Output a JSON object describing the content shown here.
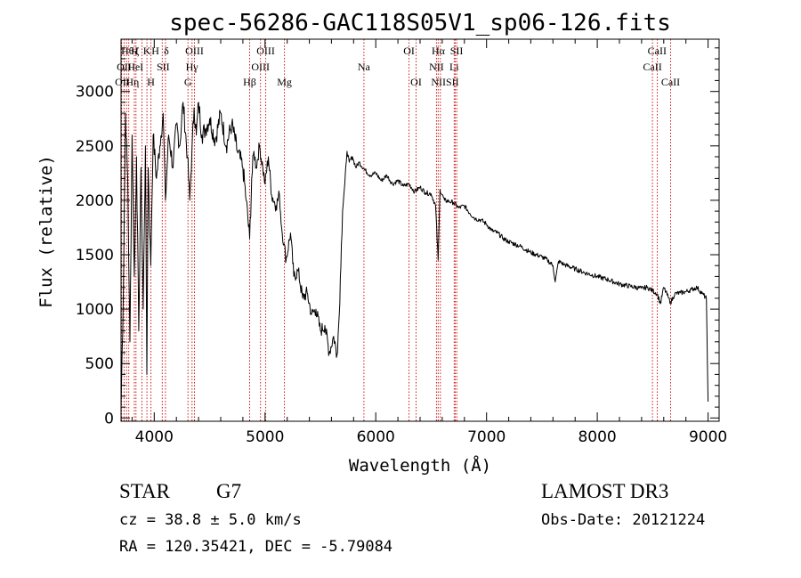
{
  "chart_data": {
    "type": "line",
    "title": "spec-56286-GAC118S05V1_sp06-126.fits",
    "xlabel": "Wavelength (Å)",
    "ylabel": "Flux (relative)",
    "xlim": [
      3700,
      9100
    ],
    "ylim": [
      -30,
      3480
    ],
    "x_ticks": [
      4000,
      5000,
      6000,
      7000,
      8000,
      9000
    ],
    "x_tick_labels": [
      "4000",
      "5000",
      "6000",
      "7000",
      "8000",
      "9000"
    ],
    "y_ticks": [
      0,
      500,
      1000,
      1500,
      2000,
      2500,
      3000
    ],
    "y_tick_labels": [
      "0",
      "500",
      "1000",
      "1500",
      "2000",
      "2500",
      "3000"
    ],
    "grid": false,
    "series": [
      {
        "name": "flux",
        "x": [
          3700,
          3720,
          3740,
          3760,
          3780,
          3800,
          3820,
          3840,
          3860,
          3880,
          3900,
          3920,
          3933,
          3945,
          3968,
          3990,
          4020,
          4050,
          4080,
          4101,
          4130,
          4170,
          4200,
          4230,
          4260,
          4300,
          4320,
          4340,
          4360,
          4380,
          4400,
          4430,
          4460,
          4500,
          4550,
          4600,
          4650,
          4700,
          4750,
          4800,
          4830,
          4861,
          4880,
          4900,
          4920,
          4950,
          4980,
          5000,
          5030,
          5060,
          5100,
          5130,
          5150,
          5172,
          5190,
          5230,
          5260,
          5300,
          5340,
          5380,
          5420,
          5460,
          5500,
          5540,
          5580,
          5620,
          5650,
          5670,
          5690,
          5700,
          5720,
          5740,
          5760,
          5790,
          5820,
          5850,
          5900,
          5950,
          6000,
          6050,
          6100,
          6150,
          6200,
          6250,
          6300,
          6350,
          6400,
          6450,
          6500,
          6540,
          6563,
          6580,
          6620,
          6660,
          6700,
          6750,
          6800,
          6850,
          6900,
          6950,
          7000,
          7050,
          7100,
          7150,
          7200,
          7300,
          7400,
          7500,
          7550,
          7600,
          7620,
          7650,
          7700,
          7800,
          7900,
          8000,
          8100,
          8200,
          8300,
          8400,
          8450,
          8500,
          8542,
          8570,
          8600,
          8640,
          8662,
          8700,
          8750,
          8800,
          8850,
          8900,
          8950,
          8985,
          9000
        ],
        "y": [
          100,
          1100,
          2800,
          2200,
          700,
          2600,
          1300,
          2400,
          800,
          2300,
          1000,
          2500,
          400,
          2300,
          1400,
          2600,
          2200,
          2500,
          2800,
          2000,
          2600,
          2300,
          2700,
          2500,
          2900,
          2400,
          2000,
          2450,
          2850,
          2600,
          2900,
          2600,
          2650,
          2750,
          2550,
          2800,
          2500,
          2700,
          2450,
          2300,
          2000,
          1650,
          2200,
          2450,
          2300,
          2500,
          2300,
          2150,
          2400,
          2050,
          1950,
          2050,
          1750,
          1600,
          1450,
          1700,
          1300,
          1350,
          1100,
          1150,
          950,
          1000,
          800,
          850,
          600,
          750,
          580,
          950,
          1600,
          1900,
          2150,
          2450,
          2350,
          2400,
          2300,
          2350,
          2280,
          2230,
          2250,
          2180,
          2230,
          2150,
          2180,
          2130,
          2150,
          2080,
          2120,
          2070,
          2060,
          1950,
          1450,
          2100,
          2000,
          1990,
          1980,
          1930,
          1950,
          1880,
          1830,
          1820,
          1780,
          1720,
          1700,
          1650,
          1620,
          1580,
          1520,
          1480,
          1450,
          1400,
          1250,
          1440,
          1410,
          1370,
          1330,
          1300,
          1270,
          1230,
          1210,
          1190,
          1200,
          1170,
          1140,
          1050,
          1200,
          1110,
          1060,
          1140,
          1150,
          1160,
          1180,
          1200,
          1140,
          1100,
          150
        ]
      }
    ],
    "lines": [
      {
        "x": 3706,
        "label": "OII"
      },
      {
        "x": 3727,
        "label": "OII"
      },
      {
        "x": 3750,
        "label": "Hη"
      },
      {
        "x": 3770,
        "label": "Hθ"
      },
      {
        "x": 3820,
        "label": "HeI"
      },
      {
        "x": 3835,
        "label": "Hη"
      },
      {
        "x": 3889,
        "label": "H"
      },
      {
        "x": 3934,
        "label": "K"
      },
      {
        "x": 3970,
        "label": "H"
      },
      {
        "x": 4072,
        "label": "SII"
      },
      {
        "x": 4101,
        "label": "Hδ"
      },
      {
        "x": 4304,
        "label": "G"
      },
      {
        "x": 4341,
        "label": "Hγ"
      },
      {
        "x": 4363,
        "label": "OIII"
      },
      {
        "x": 4861,
        "label": "Hβ"
      },
      {
        "x": 4959,
        "label": "OIII"
      },
      {
        "x": 5007,
        "label": "OIII"
      },
      {
        "x": 5175,
        "label": "Mg"
      },
      {
        "x": 5893,
        "label": "Na"
      },
      {
        "x": 6300,
        "label": "OI"
      },
      {
        "x": 6364,
        "label": "OI"
      },
      {
        "x": 6548,
        "label": "NII"
      },
      {
        "x": 6563,
        "label": "Hα"
      },
      {
        "x": 6583,
        "label": "NII"
      },
      {
        "x": 6708,
        "label": "Li"
      },
      {
        "x": 6717,
        "label": "SII"
      },
      {
        "x": 6731,
        "label": "SII"
      },
      {
        "x": 8498,
        "label": "CaII"
      },
      {
        "x": 8542,
        "label": "CaII"
      },
      {
        "x": 8662,
        "label": "CaII"
      }
    ],
    "line_labels": [
      {
        "x": 3759,
        "row": 1,
        "text": "Hθ"
      },
      {
        "x": 3823,
        "row": 1,
        "text": "H"
      },
      {
        "x": 3843,
        "row": 1,
        "text": "ζ"
      },
      {
        "x": 3934,
        "row": 1,
        "text": "K"
      },
      {
        "x": 4010,
        "row": 1,
        "text": "H"
      },
      {
        "x": 4110,
        "row": 1,
        "text": "δ"
      },
      {
        "x": 4363,
        "row": 1,
        "text": "OIII"
      },
      {
        "x": 5007,
        "row": 1,
        "text": "OIII"
      },
      {
        "x": 6300,
        "row": 1,
        "text": "OI"
      },
      {
        "x": 6565,
        "row": 1,
        "text": "Hα"
      },
      {
        "x": 6730,
        "row": 1,
        "text": "SII"
      },
      {
        "x": 8540,
        "row": 1,
        "text": "CaII"
      },
      {
        "x": 3727,
        "row": 2,
        "text": "OII"
      },
      {
        "x": 3830,
        "row": 2,
        "text": "HeI"
      },
      {
        "x": 4080,
        "row": 2,
        "text": "SII"
      },
      {
        "x": 4340,
        "row": 2,
        "text": "Hγ"
      },
      {
        "x": 4959,
        "row": 2,
        "text": "OIII"
      },
      {
        "x": 5893,
        "row": 2,
        "text": "Na"
      },
      {
        "x": 6548,
        "row": 2,
        "text": "NII"
      },
      {
        "x": 6708,
        "row": 2,
        "text": "Li"
      },
      {
        "x": 8498,
        "row": 2,
        "text": "CaII"
      },
      {
        "x": 3712,
        "row": 3,
        "text": "OII"
      },
      {
        "x": 3803,
        "row": 3,
        "text": "Hη"
      },
      {
        "x": 3970,
        "row": 3,
        "text": "H"
      },
      {
        "x": 4304,
        "row": 3,
        "text": "G"
      },
      {
        "x": 4861,
        "row": 3,
        "text": "Hβ"
      },
      {
        "x": 5175,
        "row": 3,
        "text": "Mg"
      },
      {
        "x": 6364,
        "row": 3,
        "text": "OI"
      },
      {
        "x": 6625,
        "row": 3,
        "text": "NIISII"
      },
      {
        "x": 8662,
        "row": 3,
        "text": "CaII"
      }
    ]
  },
  "info": {
    "object_class": "STAR",
    "subclass": "G7",
    "cz": "cz = 38.8 ± 5.0 km/s",
    "coords": "RA = 120.35421, DEC =  -5.79084",
    "survey": "LAMOST DR3",
    "obs_date": "Obs-Date: 20121224"
  },
  "colors": {
    "line_marker": "#cc0000",
    "spectrum": "#000000",
    "axes": "#000000"
  }
}
